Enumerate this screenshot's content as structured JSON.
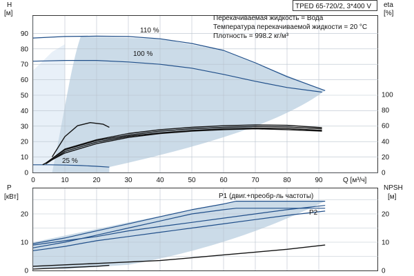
{
  "chart_data": [
    {
      "type": "line",
      "title": "TPED 65-720/2, 3*400 V",
      "info_lines": [
        "Перекачиваемая жидкость = Вода",
        "Температура перекачиваемой жидкости = 20 °C",
        "Плотность = 998.2 кг/м³"
      ],
      "xlabel": "Q [м³/ч]",
      "ylabel": "H\n[м]",
      "y2label": "eta\n[%]",
      "xlim": [
        0,
        100
      ],
      "ylim": [
        0,
        100
      ],
      "y2lim": [
        0,
        200
      ],
      "xticks": [
        0,
        10,
        20,
        30,
        40,
        50,
        60,
        70,
        80,
        90
      ],
      "yticks": [
        0,
        10,
        20,
        30,
        40,
        50,
        60,
        70,
        80,
        90
      ],
      "y2ticks": [
        0,
        20,
        40,
        60,
        80,
        100
      ],
      "grid": true,
      "series": [
        {
          "name": "110 %",
          "axis": "H",
          "color": "#1f4e89",
          "x": [
            0,
            10,
            20,
            30,
            40,
            50,
            60,
            70,
            80,
            92
          ],
          "y": [
            87,
            88,
            88.2,
            88,
            86.5,
            83.5,
            79,
            71,
            62,
            53
          ]
        },
        {
          "name": "100 %",
          "axis": "H",
          "color": "#1f4e89",
          "x": [
            0,
            10,
            20,
            30,
            40,
            50,
            60,
            70,
            80,
            91
          ],
          "y": [
            72,
            72.5,
            72.5,
            71.5,
            70,
            67.5,
            63.5,
            59,
            55,
            52
          ]
        },
        {
          "name": "25 %",
          "axis": "H",
          "color": "#1f4e89",
          "x": [
            0,
            5,
            10,
            15,
            20,
            24
          ],
          "y": [
            5,
            5,
            4.8,
            4.5,
            4,
            3.5
          ]
        },
        {
          "name": "",
          "axis": "eta",
          "color": "#111111",
          "x": [
            6,
            10,
            14,
            18,
            22,
            24
          ],
          "y": [
            20,
            46,
            60,
            64,
            62,
            58
          ]
        },
        {
          "name": "",
          "axis": "eta",
          "color": "#111111",
          "x": [
            4,
            10,
            20,
            30,
            40,
            50,
            60,
            70,
            80,
            91
          ],
          "y": [
            12,
            30,
            42,
            50,
            55,
            58,
            60,
            61,
            60.5,
            57.5
          ]
        },
        {
          "name": "",
          "axis": "eta",
          "color": "#111111",
          "x": [
            4,
            10,
            20,
            30,
            40,
            50,
            60,
            70,
            80,
            91
          ],
          "y": [
            12,
            29,
            41,
            48,
            53,
            56,
            58,
            59,
            58.5,
            56
          ]
        },
        {
          "name": "",
          "axis": "eta",
          "color": "#111111",
          "x": [
            4,
            10,
            20,
            30,
            40,
            50,
            60,
            70,
            80,
            91
          ],
          "y": [
            11,
            27,
            39,
            46.5,
            51,
            54,
            56,
            57,
            56.5,
            54
          ]
        },
        {
          "name": "",
          "axis": "eta",
          "color": "#111111",
          "x": [
            3,
            10,
            20,
            30,
            40,
            50,
            60,
            70,
            80,
            91
          ],
          "y": [
            10,
            25,
            37,
            45,
            50,
            53,
            55,
            56,
            55,
            53
          ]
        }
      ]
    },
    {
      "type": "line",
      "xlabel": "",
      "ylabel": "P\n[кВт]",
      "y2label": "NPSH\n[м]",
      "xlim": [
        0,
        100
      ],
      "ylim": [
        0,
        28
      ],
      "y2lim": [
        0,
        28
      ],
      "xticks": [
        0,
        10,
        20,
        30,
        40,
        50,
        60,
        70,
        80,
        90
      ],
      "yticks": [
        0,
        10,
        20
      ],
      "y2ticks": [
        0,
        10,
        20
      ],
      "grid": true,
      "annotations": [
        "P1 (двиг.+преобр-ль частоты)",
        "P2"
      ],
      "series": [
        {
          "name": "",
          "axis": "P",
          "color": "#1f4e89",
          "x": [
            0,
            10,
            20,
            30,
            40,
            50,
            60,
            64,
            70,
            80,
            92
          ],
          "y": [
            9.5,
            11.5,
            14,
            16.5,
            19,
            21.5,
            23.5,
            24.5,
            24.5,
            24.5,
            24.5
          ]
        },
        {
          "name": "",
          "axis": "P",
          "color": "#1f4e89",
          "x": [
            0,
            10,
            20,
            30,
            40,
            50,
            60,
            70,
            80,
            92
          ],
          "y": [
            9,
            10.5,
            12,
            14,
            15.5,
            17,
            18.5,
            20,
            21.5,
            23
          ]
        },
        {
          "name": "",
          "axis": "P",
          "color": "#1f4e89",
          "x": [
            0,
            10,
            20,
            30,
            40,
            50,
            60,
            64,
            70,
            80,
            92
          ],
          "y": [
            8,
            10,
            12.5,
            15,
            17.5,
            20,
            21.5,
            22,
            22,
            22,
            22
          ]
        },
        {
          "name": "",
          "axis": "P",
          "color": "#1f4e89",
          "x": [
            0,
            10,
            20,
            30,
            40,
            50,
            60,
            70,
            80,
            92
          ],
          "y": [
            7,
            8.5,
            10.5,
            12,
            13.5,
            15,
            16.5,
            18,
            19.5,
            21
          ]
        },
        {
          "name": "",
          "axis": "NPSH",
          "color": "#111111",
          "x": [
            0,
            10,
            20,
            30,
            40,
            50,
            60,
            70,
            80,
            92
          ],
          "y": [
            1.5,
            2,
            2.5,
            3,
            3.5,
            4.5,
            5.5,
            6.5,
            7.5,
            9
          ]
        },
        {
          "name": "",
          "axis": "P",
          "color": "#111111",
          "x": [
            0,
            10,
            20,
            24
          ],
          "y": [
            0.5,
            1,
            1.5,
            1.8
          ]
        }
      ]
    }
  ]
}
